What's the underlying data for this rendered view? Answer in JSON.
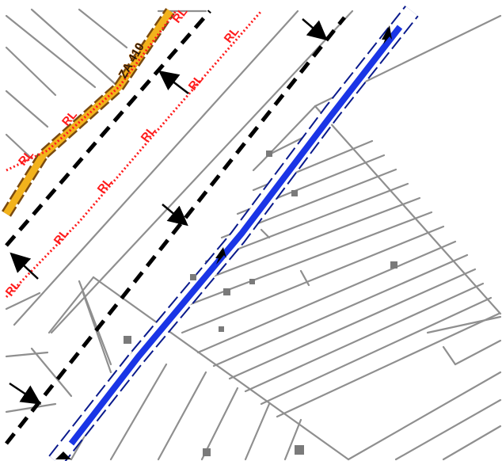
{
  "map": {
    "road_label": "ZA 410",
    "rl_label": "RL",
    "colors": {
      "background": "#ffffff",
      "parcel_line": "#8f8f8f",
      "road_fill": "#f2b21c",
      "road_edge": "#7a4a10",
      "boundary_dash": "#000000",
      "rl_line": "#ff1a1a",
      "channel_fill": "#1a35e6",
      "channel_edge": "#0a1a8c"
    },
    "icons": {
      "flow_arrow": "arrow-icon",
      "dimension_arrow": "pointer-arrow-icon",
      "building": "building-square-icon"
    }
  }
}
